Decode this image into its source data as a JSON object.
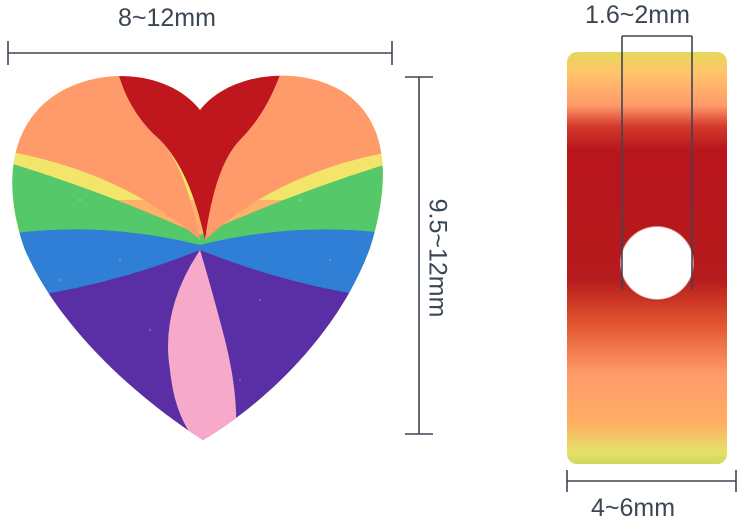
{
  "dimensions": {
    "width_label": "8~12mm",
    "height_label": "9.5~12mm",
    "hole_label": "1.6~2mm",
    "thickness_label": "4~6mm"
  },
  "colors": {
    "dimension_line": "#3b4654",
    "red": "#c0161e",
    "salmon": "#ff9a6a",
    "yellow": "#f3e46a",
    "green": "#55c86a",
    "blue": "#2f7fd6",
    "purple": "#5a2fa6",
    "pink": "#f6a9c8"
  },
  "icons": {
    "bead_front": "rainbow-heart-bead",
    "bead_side": "rainbow-bead-side-view"
  }
}
